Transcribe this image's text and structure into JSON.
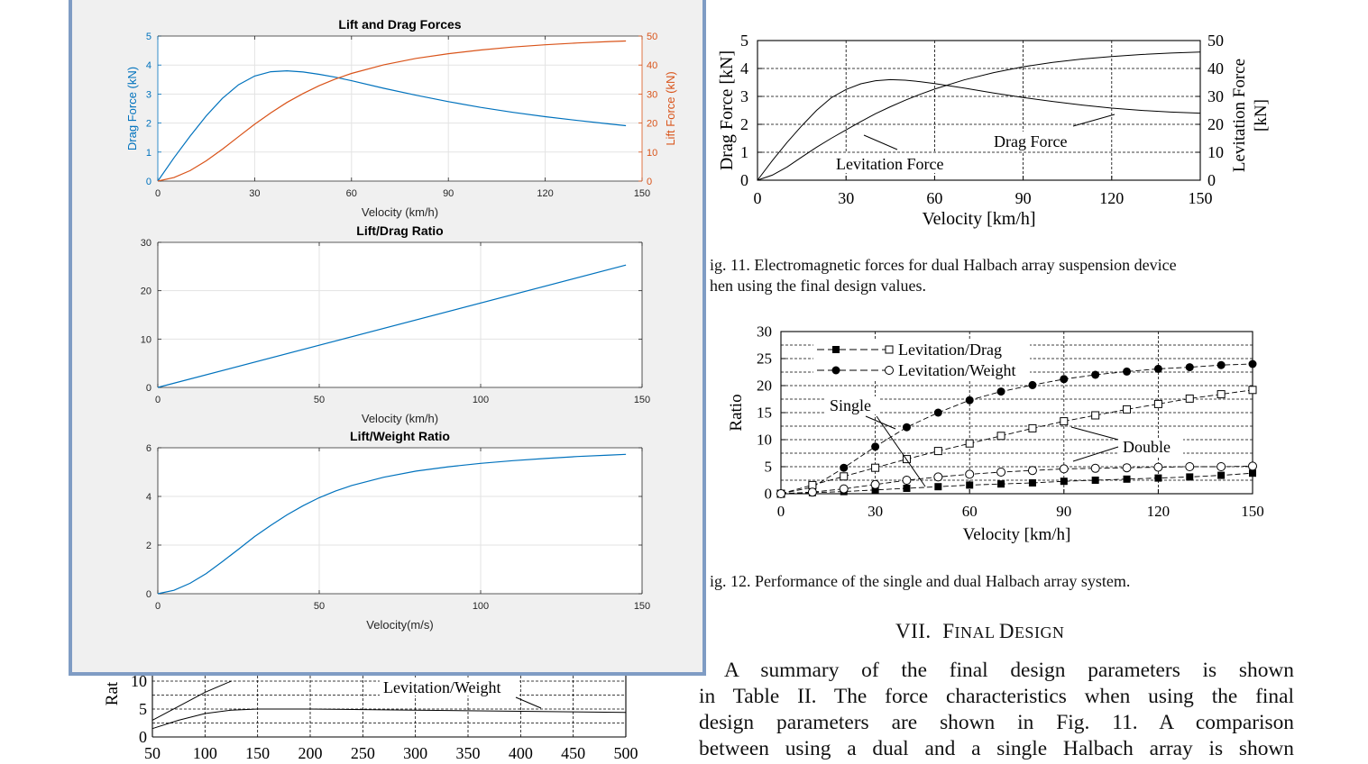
{
  "paper": {
    "fig11_caption_l1": "ig. 11.    Electromagnetic  forces  for  dual  Halbach  array  suspension  device",
    "fig11_caption_l2": "hen using the final design values.",
    "fig12_caption": "ig. 12.    Performance of the single and dual Halbach array system.",
    "section_num": "VII.",
    "section_first_F": "F",
    "section_rest1": "INAL ",
    "section_first_D": "D",
    "section_rest2": "ESIGN",
    "para": [
      "A summary of the final design parameters is shown",
      "in Table II. The force characteristics when using the final",
      "design parameters are shown in Fig. 11. A comparison",
      "between using a dual and a single Halbach array is shown"
    ]
  },
  "colors": {
    "matlab_blue": "#0072bd",
    "matlab_orange": "#d95319",
    "window_border": "#7f9cc4",
    "window_bg": "#f0f0f0"
  },
  "chart_data": [
    {
      "id": "fig11",
      "type": "line",
      "xlabel": "Velocity [km/h]",
      "ylabel": "Drag Force [kN]",
      "y2label_l1": "Levitation Force",
      "y2label_l2": "[kN]",
      "xlim": [
        0,
        150
      ],
      "ylim": [
        0,
        5
      ],
      "y2lim": [
        0,
        50
      ],
      "xticks": [
        "0",
        "30",
        "60",
        "90",
        "120",
        "150"
      ],
      "yticks": [
        "0",
        "1",
        "2",
        "3",
        "4",
        "5"
      ],
      "y2ticks": [
        "0",
        "10",
        "20",
        "30",
        "40",
        "50"
      ],
      "grid": "dashed",
      "annotations": [
        "Levitation Force",
        "Drag Force"
      ],
      "series": [
        {
          "axis": "left",
          "x": [
            0,
            5,
            10,
            15,
            20,
            25,
            30,
            35,
            40,
            45,
            50,
            55,
            60,
            70,
            80,
            90,
            100,
            110,
            120,
            130,
            140,
            150
          ],
          "y": [
            0,
            0.7,
            1.35,
            1.95,
            2.5,
            2.95,
            3.25,
            3.45,
            3.56,
            3.6,
            3.58,
            3.53,
            3.46,
            3.3,
            3.12,
            2.96,
            2.82,
            2.69,
            2.58,
            2.5,
            2.44,
            2.4
          ]
        },
        {
          "axis": "right",
          "x": [
            0,
            5,
            10,
            15,
            20,
            25,
            30,
            35,
            40,
            45,
            50,
            55,
            60,
            70,
            80,
            90,
            100,
            110,
            120,
            130,
            140,
            150
          ],
          "y": [
            0,
            1.8,
            4.7,
            8.3,
            11.8,
            15.0,
            18.0,
            21.0,
            23.8,
            26.3,
            28.6,
            30.7,
            32.6,
            35.9,
            38.5,
            40.6,
            42.2,
            43.4,
            44.3,
            45.0,
            45.5,
            45.9
          ]
        }
      ]
    },
    {
      "id": "fig12",
      "type": "line",
      "xlabel": "Velocity [km/h]",
      "ylabel": "Ratio",
      "xlim": [
        0,
        150
      ],
      "ylim": [
        0,
        30
      ],
      "xticks": [
        "0",
        "30",
        "60",
        "90",
        "120",
        "150"
      ],
      "yticks": [
        "0",
        "5",
        "10",
        "15",
        "20",
        "25",
        "30"
      ],
      "legend": [
        "Levitation/Drag",
        "Levitation/Weight"
      ],
      "legend_position": "top-left",
      "annotations": [
        "Single",
        "Double"
      ],
      "series": [
        {
          "marker": "filled-square",
          "x": [
            0,
            10,
            20,
            30,
            40,
            50,
            60,
            70,
            80,
            90,
            100,
            110,
            120,
            130,
            140,
            150
          ],
          "y": [
            0,
            0.2,
            0.4,
            0.7,
            1.0,
            1.3,
            1.6,
            1.8,
            2.0,
            2.3,
            2.5,
            2.7,
            2.9,
            3.1,
            3.4,
            3.8
          ]
        },
        {
          "marker": "filled-circle",
          "x": [
            0,
            10,
            20,
            30,
            40,
            50,
            60,
            70,
            80,
            90,
            100,
            110,
            120,
            130,
            140,
            150
          ],
          "y": [
            0,
            1.2,
            4.8,
            8.7,
            12.3,
            15.0,
            17.3,
            18.9,
            20.1,
            21.2,
            22.0,
            22.6,
            23.1,
            23.4,
            23.8,
            24.0
          ]
        },
        {
          "marker": "open-square",
          "x": [
            0,
            10,
            20,
            30,
            40,
            50,
            60,
            70,
            80,
            90,
            100,
            110,
            120,
            130,
            140,
            150
          ],
          "y": [
            0,
            1.6,
            3.2,
            4.8,
            6.4,
            7.9,
            9.3,
            10.7,
            12.1,
            13.4,
            14.5,
            15.6,
            16.6,
            17.6,
            18.4,
            19.2
          ]
        },
        {
          "marker": "open-circle",
          "x": [
            0,
            10,
            20,
            30,
            40,
            50,
            60,
            70,
            80,
            90,
            100,
            110,
            120,
            130,
            140,
            150
          ],
          "y": [
            0,
            0.3,
            0.9,
            1.7,
            2.5,
            3.1,
            3.6,
            4.0,
            4.3,
            4.6,
            4.7,
            4.8,
            4.9,
            5.0,
            5.0,
            5.1
          ]
        }
      ]
    },
    {
      "id": "bottom-partial",
      "type": "line",
      "ylabel": "Rat",
      "xlim": [
        50,
        500
      ],
      "ylim": [
        0,
        10
      ],
      "xticks": [
        "50",
        "100",
        "150",
        "200",
        "250",
        "300",
        "350",
        "400",
        "450",
        "500"
      ],
      "yticks": [
        "0",
        "5",
        "10"
      ],
      "annotations": [
        "Levitation/Weight"
      ],
      "series": [
        {
          "x": [
            50,
            75,
            100,
            125,
            150,
            200,
            250,
            300,
            350,
            400,
            450,
            500
          ],
          "y": [
            1.5,
            3.0,
            4.2,
            4.8,
            5.0,
            5.0,
            4.9,
            4.8,
            4.7,
            4.6,
            4.5,
            4.4
          ]
        },
        {
          "x": [
            50,
            75,
            100,
            125
          ],
          "y": [
            3.0,
            5.5,
            8.0,
            10.0
          ]
        }
      ]
    },
    {
      "id": "matlab-lift-drag",
      "type": "line",
      "title": "Lift and Drag Forces",
      "xlabel": "Velocity (km/h)",
      "ylabel": "Drag Force (kN)",
      "y2label": "Lift Force (kN)",
      "xlim": [
        0,
        150
      ],
      "ylim": [
        0,
        5
      ],
      "y2lim": [
        0,
        50
      ],
      "xticks": [
        "0",
        "30",
        "60",
        "90",
        "120",
        "150"
      ],
      "yticks": [
        "0",
        "1",
        "2",
        "3",
        "4",
        "5"
      ],
      "y2ticks": [
        "0",
        "10",
        "20",
        "30",
        "40",
        "50"
      ],
      "series": [
        {
          "axis": "left",
          "color": "#0072bd",
          "x": [
            0,
            5,
            10,
            15,
            20,
            25,
            30,
            35,
            40,
            45,
            50,
            55,
            60,
            70,
            80,
            90,
            100,
            110,
            120,
            130,
            140,
            145
          ],
          "y": [
            0,
            0.8,
            1.55,
            2.25,
            2.85,
            3.32,
            3.62,
            3.77,
            3.8,
            3.76,
            3.68,
            3.58,
            3.46,
            3.2,
            2.96,
            2.74,
            2.54,
            2.37,
            2.22,
            2.09,
            1.97,
            1.91
          ]
        },
        {
          "axis": "right",
          "color": "#d95319",
          "x": [
            0,
            5,
            10,
            15,
            20,
            25,
            30,
            35,
            40,
            45,
            50,
            55,
            60,
            70,
            80,
            90,
            100,
            110,
            120,
            130,
            140,
            145
          ],
          "y": [
            0,
            1.2,
            3.6,
            7.0,
            11.0,
            15.3,
            19.6,
            23.5,
            27.1,
            30.2,
            32.9,
            35.2,
            37.1,
            40.1,
            42.3,
            43.9,
            45.2,
            46.2,
            47.0,
            47.6,
            48.1,
            48.3
          ]
        }
      ]
    },
    {
      "id": "matlab-lift-drag-ratio",
      "type": "line",
      "title": "Lift/Drag Ratio",
      "xlabel": "Velocity (km/h)",
      "xlim": [
        0,
        150
      ],
      "ylim": [
        0,
        30
      ],
      "xticks": [
        "0",
        "50",
        "100",
        "150"
      ],
      "yticks": [
        "0",
        "10",
        "20",
        "30"
      ],
      "series": [
        {
          "color": "#0072bd",
          "x": [
            0,
            145
          ],
          "y": [
            0,
            25.3
          ]
        }
      ]
    },
    {
      "id": "matlab-lift-weight-ratio",
      "type": "line",
      "title": "Lift/Weight Ratio",
      "xlabel": "Velocity(m/s)",
      "xlim": [
        0,
        150
      ],
      "ylim": [
        0,
        6
      ],
      "xticks": [
        "0",
        "50",
        "100",
        "150"
      ],
      "yticks": [
        "0",
        "2",
        "4",
        "6"
      ],
      "series": [
        {
          "color": "#0072bd",
          "x": [
            0,
            5,
            10,
            15,
            20,
            25,
            30,
            35,
            40,
            45,
            50,
            55,
            60,
            70,
            80,
            90,
            100,
            110,
            120,
            130,
            140,
            145
          ],
          "y": [
            0,
            0.14,
            0.43,
            0.83,
            1.32,
            1.83,
            2.35,
            2.81,
            3.24,
            3.62,
            3.95,
            4.22,
            4.45,
            4.79,
            5.04,
            5.22,
            5.36,
            5.47,
            5.56,
            5.64,
            5.7,
            5.73
          ]
        }
      ]
    }
  ]
}
